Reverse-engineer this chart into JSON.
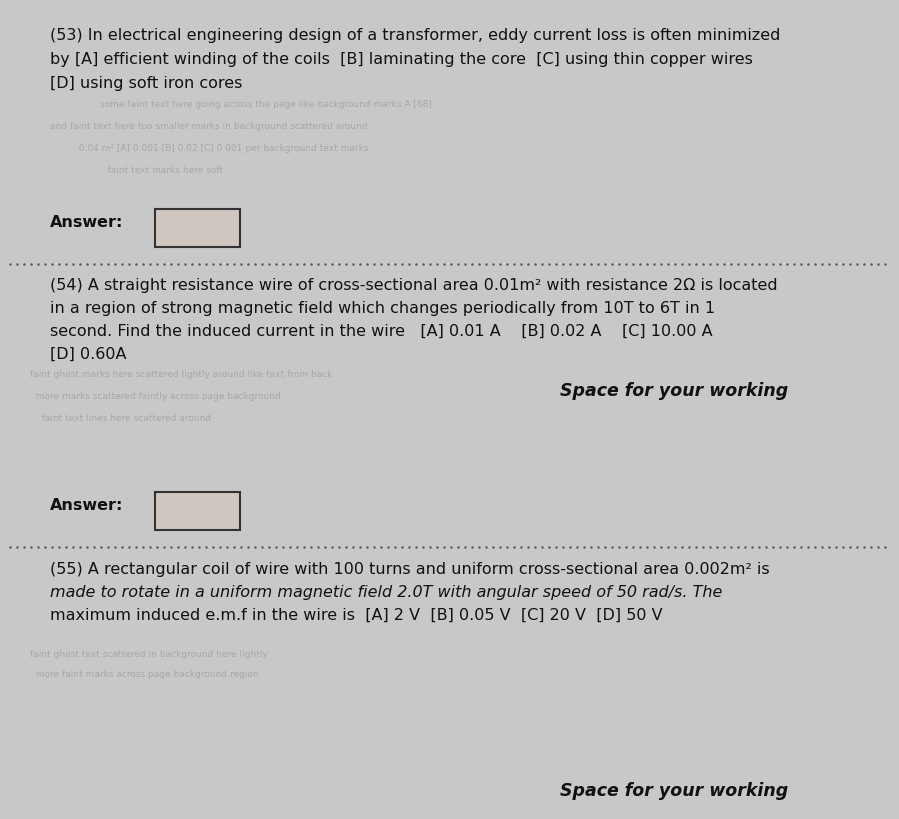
{
  "bg_color": "#c8c8c8",
  "paper_color": "#d4d4d4",
  "text_color": "#111111",
  "q53_line1": "(53) In electrical engineering design of a transformer, eddy current loss is often minimized",
  "q53_line2": "by [A] efficient winding of the coils  [B] laminating the core  [C] using thin copper wires",
  "q53_line3": "[D] using soft iron cores",
  "q54_line1": "(54) A straight resistance wire of cross-sectional area 0.01m² with resistance 2Ω is located",
  "q54_line2": "in a region of strong magnetic field which changes periodically from 10T to 6T in 1",
  "q54_line3": "second. Find the induced current in the wire   [A] 0.01 A    [B] 0.02 A    [C] 10.00 A",
  "q54_line4": "[D] 0.60A",
  "space_working": "Space for your working",
  "answer_label": "Answer:",
  "q55_line1": "(55) A rectangular coil of wire with 100 turns and uniform cross-sectional area 0.002m² is",
  "q55_line2": "made to rotate in a uniform magnetic field 2.0T with angular speed of 50 rad/s. The",
  "q55_line3": "maximum induced e.m.f in the wire is  [A] 2 V  [B] 0.05 V  [C] 20 V  [D] 50 V",
  "space_working2": "Space for your working",
  "font_size_body": 11.5,
  "font_size_italic": 12.5,
  "ghost_color": "#9a9a9a",
  "answer_box_color": "#d0c8c0",
  "dot_color": "#555555"
}
